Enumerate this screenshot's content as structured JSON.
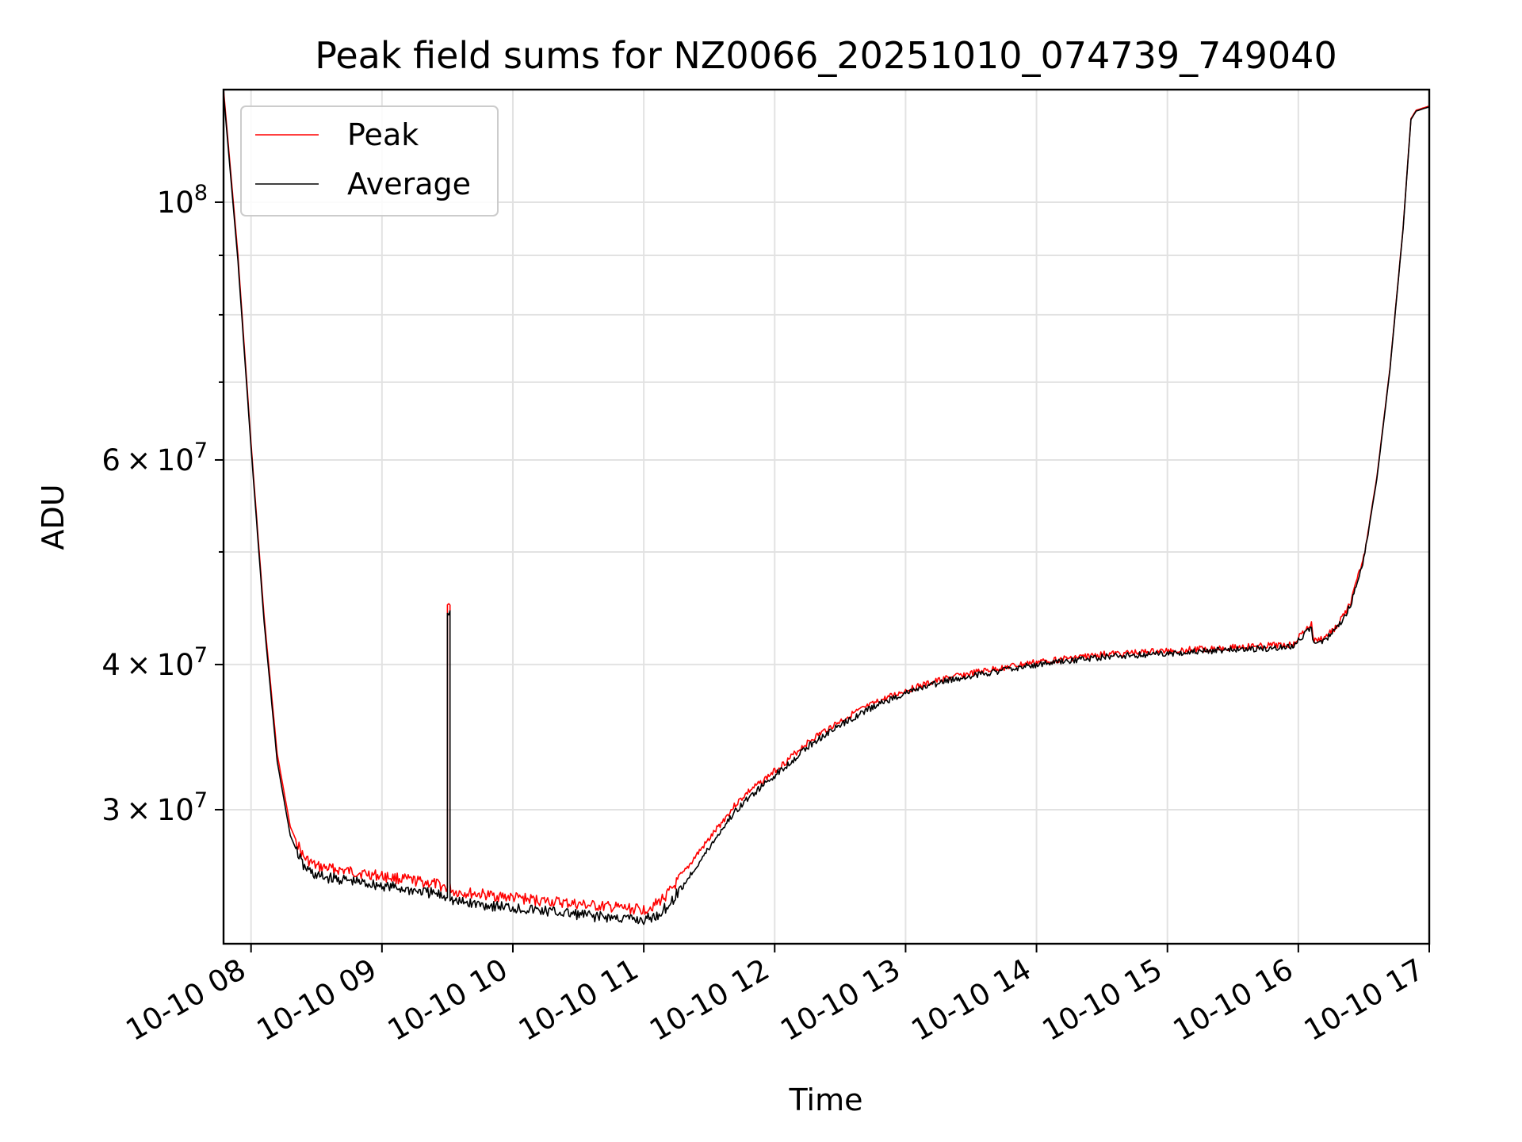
{
  "chart_data": {
    "type": "line",
    "title": "Peak field sums for NZ0066_20251010_074739_749040",
    "xlabel": "Time",
    "ylabel": "ADU",
    "yscale": "log",
    "xlim": [
      7.79,
      17.0
    ],
    "ylim": [
      23000000,
      125000000
    ],
    "x_ticks": [
      8,
      9,
      10,
      11,
      12,
      13,
      14,
      15,
      16,
      17
    ],
    "x_tick_labels": [
      "10-10 08",
      "10-10 09",
      "10-10 10",
      "10-10 11",
      "10-10 12",
      "10-10 13",
      "10-10 14",
      "10-10 15",
      "10-10 16",
      "10-10 17"
    ],
    "y_major_ticks": [
      {
        "value": 30000000,
        "mantissa": "3",
        "exponent": "7"
      },
      {
        "value": 40000000,
        "mantissa": "4",
        "exponent": "7"
      },
      {
        "value": 60000000,
        "mantissa": "6",
        "exponent": "7"
      },
      {
        "value": 100000000,
        "mantissa": "",
        "exponent": "8"
      }
    ],
    "y_minor_ticks": [
      50000000,
      70000000,
      80000000,
      90000000
    ],
    "grid": true,
    "legend_position": "top-left",
    "series": [
      {
        "name": "Peak",
        "color": "#ff0000",
        "x": [
          7.79,
          7.9,
          8.0,
          8.1,
          8.2,
          8.3,
          8.4,
          8.5,
          8.6,
          8.8,
          9.0,
          9.2,
          9.4,
          9.5,
          9.5,
          9.52,
          9.52,
          9.55,
          9.7,
          10.0,
          10.3,
          10.6,
          11.0,
          11.1,
          11.2,
          11.3,
          11.4,
          11.5,
          11.6,
          11.7,
          11.8,
          11.9,
          12.0,
          12.1,
          12.2,
          12.3,
          12.4,
          12.6,
          12.8,
          13.0,
          13.3,
          13.6,
          14.0,
          14.5,
          15.0,
          15.5,
          15.95,
          16.05,
          16.1,
          16.12,
          16.2,
          16.3,
          16.4,
          16.5,
          16.6,
          16.7,
          16.8,
          16.86,
          16.9,
          17.0
        ],
        "y": [
          125000000,
          90000000,
          62000000,
          44000000,
          33500000,
          29000000,
          27300000,
          26800000,
          26700000,
          26500000,
          26300000,
          26100000,
          25900000,
          25700000,
          45000000,
          45000000,
          25700000,
          25500000,
          25400000,
          25200000,
          25000000,
          24800000,
          24600000,
          24900000,
          25500000,
          26400000,
          27400000,
          28300000,
          29300000,
          30300000,
          31100000,
          31700000,
          32400000,
          33100000,
          33900000,
          34600000,
          35200000,
          36300000,
          37200000,
          38000000,
          38900000,
          39500000,
          40200000,
          40800000,
          41100000,
          41400000,
          41600000,
          42800000,
          43300000,
          41900000,
          42200000,
          43200000,
          45200000,
          49500000,
          58000000,
          72000000,
          95000000,
          118000000,
          120000000,
          121000000
        ]
      },
      {
        "name": "Average",
        "color": "#000000",
        "x": [
          7.79,
          7.9,
          8.0,
          8.1,
          8.2,
          8.3,
          8.4,
          8.5,
          8.6,
          8.8,
          9.0,
          9.2,
          9.4,
          9.5,
          9.5,
          9.52,
          9.52,
          9.55,
          9.7,
          10.0,
          10.3,
          10.6,
          11.0,
          11.1,
          11.2,
          11.3,
          11.4,
          11.5,
          11.6,
          11.7,
          11.8,
          11.9,
          12.0,
          12.1,
          12.2,
          12.3,
          12.4,
          12.6,
          12.8,
          13.0,
          13.3,
          13.6,
          14.0,
          14.5,
          15.0,
          15.5,
          15.95,
          16.05,
          16.1,
          16.12,
          16.2,
          16.3,
          16.4,
          16.5,
          16.6,
          16.7,
          16.8,
          16.86,
          16.9,
          17.0
        ],
        "y": [
          124000000,
          89000000,
          61500000,
          43500000,
          33000000,
          28500000,
          26800000,
          26300000,
          26200000,
          26000000,
          25800000,
          25600000,
          25400000,
          25200000,
          44500000,
          44500000,
          25200000,
          25000000,
          24900000,
          24700000,
          24500000,
          24300000,
          24100000,
          24300000,
          24900000,
          25800000,
          26800000,
          27800000,
          28900000,
          29900000,
          30700000,
          31400000,
          32100000,
          32800000,
          33600000,
          34300000,
          34900000,
          36000000,
          37000000,
          37800000,
          38700000,
          39300000,
          40000000,
          40600000,
          40900000,
          41200000,
          41400000,
          42500000,
          43000000,
          41600000,
          42000000,
          43000000,
          45000000,
          49300000,
          57800000,
          71800000,
          94800000,
          117800000,
          119800000,
          120800000
        ]
      }
    ]
  }
}
